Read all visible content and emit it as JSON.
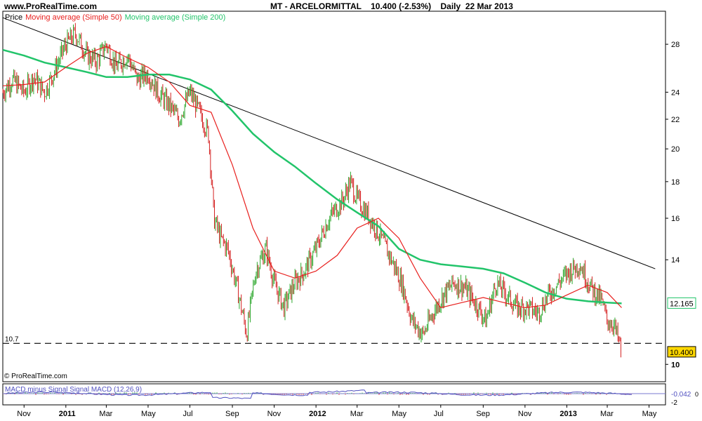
{
  "header": {
    "site": "www.ProRealTime.com",
    "title": "MT - ARCELORMITTAL    10.400 (-2.53%)    Daily  22 Mar 2013"
  },
  "legend": {
    "price": "Price",
    "ma50": "Moving average (Simple 50)",
    "ma200": "Moving average (Simple 200)"
  },
  "footer": {
    "copyright": "© ProRealTime.com"
  },
  "macd": {
    "label": "MACD minus Signal Signal MACD (12,26,9)",
    "value_tag": "-0.042",
    "ticks": [
      "0",
      "-2"
    ]
  },
  "colors": {
    "ma50": "#e8201e",
    "ma200": "#22c46a",
    "price_up": "#2ea82e",
    "price_down": "#d42020",
    "macd": "#5050c0",
    "last_price_tag": "#ffd700"
  },
  "chart_data": {
    "type": "line",
    "title": "MT - ARCELORMITTAL",
    "ylabel": "",
    "y_scale": "log",
    "ylim": [
      9.5,
      31
    ],
    "y_ticks": [
      10,
      14,
      16,
      18,
      20,
      22,
      24,
      28
    ],
    "x_ticks": [
      "Nov",
      "2011",
      "Mar",
      "May",
      "Jul",
      "Sep",
      "Nov",
      "2012",
      "Mar",
      "May",
      "Jul",
      "Sep",
      "Nov",
      "2013",
      "Mar",
      "May"
    ],
    "support_level": {
      "value": 10.7,
      "label": "10.7"
    },
    "trendline": {
      "start": [
        "2010-10-01",
        30.5
      ],
      "end": [
        "2013-05-10",
        13.6
      ]
    },
    "last_price": "10.400",
    "ma200_tag": "12.165",
    "series": [
      {
        "name": "Price",
        "points": [
          [
            "2010-10-01",
            24.0
          ],
          [
            "2010-10-15",
            25.0
          ],
          [
            "2010-11-01",
            24.0
          ],
          [
            "2010-11-15",
            25.2
          ],
          [
            "2010-12-01",
            24.0
          ],
          [
            "2010-12-15",
            25.6
          ],
          [
            "2011-01-01",
            28.0
          ],
          [
            "2011-01-15",
            29.0
          ],
          [
            "2011-02-01",
            27.0
          ],
          [
            "2011-02-15",
            26.5
          ],
          [
            "2011-03-01",
            28.0
          ],
          [
            "2011-03-15",
            26.0
          ],
          [
            "2011-04-01",
            27.0
          ],
          [
            "2011-04-15",
            25.0
          ],
          [
            "2011-05-01",
            25.5
          ],
          [
            "2011-05-15",
            24.0
          ],
          [
            "2011-06-01",
            23.0
          ],
          [
            "2011-06-15",
            22.0
          ],
          [
            "2011-07-01",
            24.0
          ],
          [
            "2011-07-15",
            22.5
          ],
          [
            "2011-07-28",
            21.0
          ],
          [
            "2011-08-05",
            16.0
          ],
          [
            "2011-08-15",
            15.0
          ],
          [
            "2011-08-25",
            14.5
          ],
          [
            "2011-09-10",
            12.5
          ],
          [
            "2011-09-22",
            11.0
          ],
          [
            "2011-10-05",
            13.5
          ],
          [
            "2011-10-20",
            14.5
          ],
          [
            "2011-11-01",
            13.0
          ],
          [
            "2011-11-15",
            12.0
          ],
          [
            "2011-12-01",
            13.0
          ],
          [
            "2011-12-15",
            13.5
          ],
          [
            "2012-01-01",
            14.5
          ],
          [
            "2012-01-20",
            16.0
          ],
          [
            "2012-02-10",
            17.0
          ],
          [
            "2012-02-20",
            18.0
          ],
          [
            "2012-03-01",
            17.0
          ],
          [
            "2012-03-20",
            16.0
          ],
          [
            "2012-04-05",
            15.0
          ],
          [
            "2012-04-20",
            14.0
          ],
          [
            "2012-05-05",
            13.0
          ],
          [
            "2012-05-20",
            11.5
          ],
          [
            "2012-06-05",
            11.0
          ],
          [
            "2012-06-20",
            11.8
          ],
          [
            "2012-07-05",
            12.5
          ],
          [
            "2012-07-20",
            13.0
          ],
          [
            "2012-08-05",
            12.8
          ],
          [
            "2012-08-20",
            12.2
          ],
          [
            "2012-09-05",
            11.5
          ],
          [
            "2012-09-20",
            13.0
          ],
          [
            "2012-10-05",
            12.5
          ],
          [
            "2012-10-20",
            12.0
          ],
          [
            "2012-11-05",
            12.0
          ],
          [
            "2012-11-20",
            11.8
          ],
          [
            "2012-12-05",
            12.5
          ],
          [
            "2012-12-20",
            13.0
          ],
          [
            "2013-01-05",
            13.5
          ],
          [
            "2013-01-20",
            13.8
          ],
          [
            "2013-02-05",
            12.8
          ],
          [
            "2013-02-20",
            12.3
          ],
          [
            "2013-03-01",
            11.5
          ],
          [
            "2013-03-10",
            11.4
          ],
          [
            "2013-03-22",
            10.4
          ]
        ]
      },
      {
        "name": "Moving average (Simple 50)",
        "points": [
          [
            "2010-10-01",
            24.5
          ],
          [
            "2010-11-01",
            24.6
          ],
          [
            "2010-12-01",
            24.8
          ],
          [
            "2011-01-01",
            26.0
          ],
          [
            "2011-02-01",
            27.2
          ],
          [
            "2011-03-01",
            27.8
          ],
          [
            "2011-04-01",
            26.8
          ],
          [
            "2011-05-01",
            26.0
          ],
          [
            "2011-06-01",
            24.8
          ],
          [
            "2011-07-01",
            23.0
          ],
          [
            "2011-08-01",
            22.5
          ],
          [
            "2011-09-01",
            19.0
          ],
          [
            "2011-10-01",
            15.5
          ],
          [
            "2011-11-01",
            13.5
          ],
          [
            "2011-12-01",
            13.2
          ],
          [
            "2012-01-01",
            13.5
          ],
          [
            "2012-02-01",
            14.2
          ],
          [
            "2012-03-01",
            15.5
          ],
          [
            "2012-04-01",
            16.0
          ],
          [
            "2012-05-01",
            15.0
          ],
          [
            "2012-06-01",
            13.2
          ],
          [
            "2012-07-01",
            12.0
          ],
          [
            "2012-08-01",
            12.2
          ],
          [
            "2012-09-01",
            12.4
          ],
          [
            "2012-10-01",
            12.2
          ],
          [
            "2012-11-01",
            12.0
          ],
          [
            "2012-12-01",
            12.1
          ],
          [
            "2013-01-01",
            12.5
          ],
          [
            "2013-02-01",
            12.9
          ],
          [
            "2013-03-01",
            12.6
          ],
          [
            "2013-03-22",
            12.0
          ]
        ]
      },
      {
        "name": "Moving average (Simple 200)",
        "points": [
          [
            "2010-10-01",
            27.5
          ],
          [
            "2010-11-01",
            27.0
          ],
          [
            "2010-12-01",
            26.4
          ],
          [
            "2011-01-01",
            26.0
          ],
          [
            "2011-02-01",
            25.6
          ],
          [
            "2011-03-01",
            25.2
          ],
          [
            "2011-04-01",
            25.2
          ],
          [
            "2011-05-01",
            25.4
          ],
          [
            "2011-06-01",
            25.4
          ],
          [
            "2011-07-01",
            25.0
          ],
          [
            "2011-08-01",
            24.2
          ],
          [
            "2011-09-01",
            22.6
          ],
          [
            "2011-10-01",
            21.0
          ],
          [
            "2011-11-01",
            19.8
          ],
          [
            "2011-12-01",
            18.9
          ],
          [
            "2012-01-01",
            17.9
          ],
          [
            "2012-02-01",
            17.0
          ],
          [
            "2012-03-01",
            16.3
          ],
          [
            "2012-04-01",
            15.6
          ],
          [
            "2012-05-01",
            14.5
          ],
          [
            "2012-06-01",
            14.0
          ],
          [
            "2012-07-01",
            13.8
          ],
          [
            "2012-08-01",
            13.7
          ],
          [
            "2012-09-01",
            13.6
          ],
          [
            "2012-10-01",
            13.4
          ],
          [
            "2012-11-01",
            13.0
          ],
          [
            "2012-12-01",
            12.6
          ],
          [
            "2013-01-01",
            12.35
          ],
          [
            "2013-02-01",
            12.25
          ],
          [
            "2013-03-01",
            12.2
          ],
          [
            "2013-03-22",
            12.165
          ]
        ]
      }
    ]
  }
}
